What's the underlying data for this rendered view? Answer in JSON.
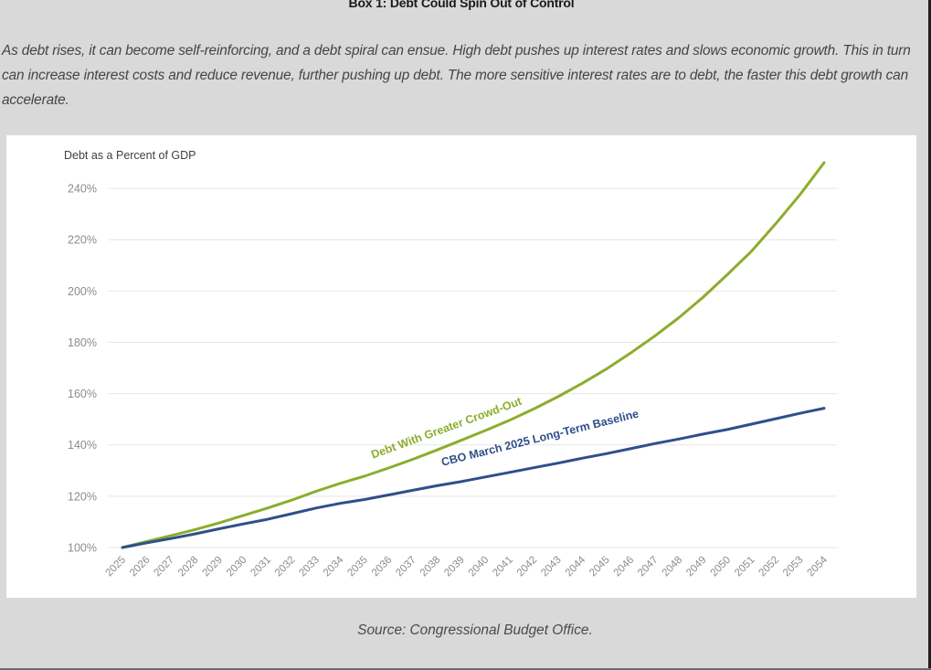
{
  "box_title": "Box 1: Debt Could Spin Out of Control",
  "intro_text": "As debt rises, it can become self-reinforcing, and a debt spiral can ensue. High debt pushes up interest rates and slows economic growth. This in turn can increase interest costs and reduce revenue, further pushing up debt. The more sensitive interest rates are to debt, the faster this debt growth can accelerate.",
  "source_text": "Source: Congressional Budget Office.",
  "colors": {
    "green_series": "#8cad2c",
    "blue_series": "#2e4f8a",
    "grid": "#e6e6e6",
    "tick_text": "#8c8c8c"
  },
  "chart_data": {
    "type": "line",
    "ylabel": "Debt as a Percent of GDP",
    "xlabel": "",
    "ylim": [
      100,
      250
    ],
    "yticks": [
      100,
      120,
      140,
      160,
      180,
      200,
      220,
      240
    ],
    "ytick_labels": [
      "100%",
      "120%",
      "140%",
      "160%",
      "180%",
      "200%",
      "220%",
      "240%"
    ],
    "grid": true,
    "legend": "inline labels along lines",
    "x": [
      "2025",
      "2026",
      "2027",
      "2028",
      "2029",
      "2030",
      "2031",
      "2032",
      "2033",
      "2034",
      "2035",
      "2036",
      "2037",
      "2038",
      "2039",
      "2040",
      "2041",
      "2042",
      "2043",
      "2044",
      "2045",
      "2046",
      "2047",
      "2048",
      "2049",
      "2050",
      "2051",
      "2052",
      "2053",
      "2054"
    ],
    "series": [
      {
        "name": "Debt With Greater Crowd-Out",
        "values": [
          100,
          102.3,
          104.6,
          107,
          109.6,
          112.5,
          115.4,
          118.5,
          121.9,
          125,
          127.8,
          131,
          134.4,
          138,
          141.8,
          145.6,
          149.6,
          154,
          158.8,
          164,
          169.6,
          175.8,
          182.4,
          189.6,
          197.6,
          206.4,
          215.5,
          226.2,
          237.5,
          250
        ]
      },
      {
        "name": "CBO March 2025 Long-Term Baseline",
        "values": [
          100,
          101.8,
          103.5,
          105.3,
          107.3,
          109.2,
          111,
          113.2,
          115.4,
          117.2,
          118.7,
          120.5,
          122.3,
          124.1,
          125.7,
          127.5,
          129.3,
          131.1,
          132.9,
          134.8,
          136.6,
          138.5,
          140.5,
          142.3,
          144.2,
          146,
          148.1,
          150.2,
          152.3,
          154.3
        ]
      }
    ]
  }
}
